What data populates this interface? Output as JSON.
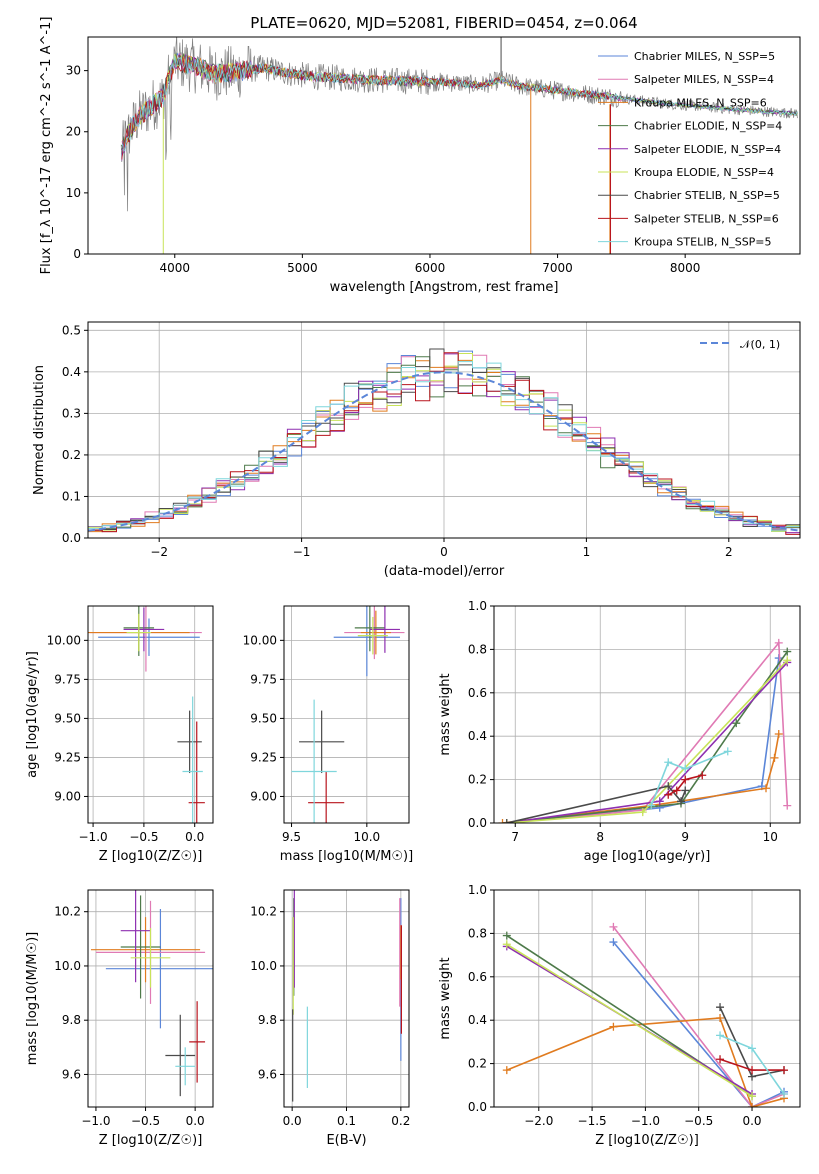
{
  "title": "PLATE=0620, MJD=52081, FIBERID=0454, z=0.064",
  "legend_series": [
    {
      "name": "Chabrier MILES, N_SSP=5",
      "color": "#5b86d8"
    },
    {
      "name": "Salpeter MILES, N_SSP=4",
      "color": "#e07ab4"
    },
    {
      "name": "Kroupa MILES, N_SSP=6",
      "color": "#e07b1f"
    },
    {
      "name": "Chabrier ELODIE, N_SSP=4",
      "color": "#4e7a4a"
    },
    {
      "name": "Salpeter ELODIE, N_SSP=4",
      "color": "#8e2fb0"
    },
    {
      "name": "Kroupa ELODIE, N_SSP=4",
      "color": "#c8e35a"
    },
    {
      "name": "Chabrier STELIB, N_SSP=5",
      "color": "#4a4a4a"
    },
    {
      "name": "Salpeter STELIB, N_SSP=6",
      "color": "#b8141d"
    },
    {
      "name": "Kroupa STELIB, N_SSP=5",
      "color": "#7fd6dc"
    }
  ],
  "chart_data": [
    {
      "id": "spectrum",
      "type": "line",
      "title": "PLATE=0620, MJD=52081, FIBERID=0454, z=0.064",
      "xlabel": "wavelength [Angstrom, rest frame]",
      "ylabel": "Flux [f_λ 10^-17 erg cm^-2 s^-1 A^-1]",
      "xlim": [
        3320,
        8900
      ],
      "ylim": [
        0,
        35.5
      ],
      "xticks": [
        4000,
        5000,
        6000,
        7000,
        8000
      ],
      "yticks": [
        0,
        10,
        20,
        30
      ],
      "data_color": "#808080",
      "spectrum_nodes": {
        "x": [
          3580,
          3620,
          3700,
          3800,
          3900,
          4000,
          4100,
          4200,
          4300,
          4500,
          4700,
          4900,
          5100,
          5300,
          5500,
          5800,
          6000,
          6200,
          6400,
          6560,
          6700,
          6900,
          7100,
          7300,
          7500,
          7700,
          7900,
          8100,
          8300,
          8500,
          8700,
          8880
        ],
        "y": [
          16.5,
          19,
          22,
          24,
          25.5,
          31.5,
          31,
          30.5,
          29.5,
          29.8,
          30.5,
          29.5,
          29,
          28.8,
          28.5,
          28.3,
          28.2,
          28,
          27.6,
          28.5,
          27.5,
          27.0,
          26.5,
          26.0,
          25.5,
          25.0,
          24.5,
          24.2,
          23.8,
          23.5,
          23.2,
          23.0
        ]
      },
      "series": [
        {
          "name": "Chabrier MILES, N_SSP=5"
        },
        {
          "name": "Salpeter MILES, N_SSP=4"
        },
        {
          "name": "Kroupa MILES, N_SSP=6"
        },
        {
          "name": "Chabrier ELODIE, N_SSP=4"
        },
        {
          "name": "Salpeter ELODIE, N_SSP=4"
        },
        {
          "name": "Kroupa ELODIE, N_SSP=4"
        },
        {
          "name": "Chabrier STELIB, N_SSP=5"
        },
        {
          "name": "Salpeter STELIB, N_SSP=6"
        },
        {
          "name": "Kroupa STELIB, N_SSP=5"
        }
      ],
      "grid": false,
      "legend_position": "upper-right"
    },
    {
      "id": "residuals",
      "type": "bar",
      "xlabel": "(data-model)/error",
      "ylabel": "Normed distribution",
      "xlim": [
        -2.5,
        2.5
      ],
      "ylim": [
        0,
        0.52
      ],
      "xticks": [
        -2,
        -1,
        0,
        1,
        2
      ],
      "yticks": [
        0.0,
        0.1,
        0.2,
        0.3,
        0.4,
        0.5
      ],
      "reference_curve": {
        "name": "𝒩(0, 1)",
        "color": "#5b86d8",
        "style": "dashed"
      },
      "bin_width": 0.1,
      "grid": true,
      "legend_position": "upper-right"
    },
    {
      "id": "age-vs-Z",
      "type": "scatter",
      "xlabel": "Z [log10(Z/Z☉)]",
      "ylabel": "age  [log10(age/yr)]",
      "xlim": [
        -1.05,
        0.18
      ],
      "ylim": [
        8.83,
        10.22
      ],
      "xticks": [
        -1.0,
        -0.5,
        0.0
      ],
      "yticks": [
        9.0,
        9.25,
        9.5,
        9.75,
        10.0
      ],
      "points": [
        {
          "series": 0,
          "x": -0.45,
          "y": 10.02,
          "xerr": 0.5,
          "yerr": 0.12
        },
        {
          "series": 1,
          "x": -0.48,
          "y": 10.05,
          "xerr": 0.55,
          "yerr": 0.25
        },
        {
          "series": 2,
          "x": -0.55,
          "y": 10.05,
          "xerr": 0.5,
          "yerr": 0.12
        },
        {
          "series": 3,
          "x": -0.55,
          "y": 10.08,
          "xerr": 0.15,
          "yerr": 0.18
        },
        {
          "series": 4,
          "x": -0.5,
          "y": 10.07,
          "xerr": 0.2,
          "yerr": 0.14
        },
        {
          "series": 5,
          "x": -0.55,
          "y": 10.05,
          "xerr": 0.12,
          "yerr": 0.12
        },
        {
          "series": 6,
          "x": -0.05,
          "y": 9.35,
          "xerr": 0.12,
          "yerr": 0.2
        },
        {
          "series": 7,
          "x": 0.02,
          "y": 8.96,
          "xerr": 0.08,
          "yerr": 0.52
        },
        {
          "series": 8,
          "x": -0.02,
          "y": 9.16,
          "xerr": 0.1,
          "yerr": 0.48
        }
      ]
    },
    {
      "id": "age-vs-mass",
      "type": "scatter",
      "xlabel": "mass [log10(M/M☉)]",
      "ylabel": "",
      "xlim": [
        9.45,
        10.28
      ],
      "ylim": [
        8.83,
        10.22
      ],
      "xticks": [
        9.5,
        10.0
      ],
      "yticks": [
        9.0,
        9.25,
        9.5,
        9.75,
        10.0
      ],
      "points": [
        {
          "series": 0,
          "x": 10.0,
          "y": 10.02,
          "xerr": 0.22,
          "yerr": 0.25
        },
        {
          "series": 1,
          "x": 10.05,
          "y": 10.05,
          "xerr": 0.2,
          "yerr": 0.17
        },
        {
          "series": 2,
          "x": 10.06,
          "y": 10.05,
          "xerr": 0.1,
          "yerr": 0.14
        },
        {
          "series": 3,
          "x": 10.02,
          "y": 10.08,
          "xerr": 0.1,
          "yerr": 0.15
        },
        {
          "series": 4,
          "x": 10.12,
          "y": 10.07,
          "xerr": 0.1,
          "yerr": 0.15
        },
        {
          "series": 5,
          "x": 10.04,
          "y": 10.03,
          "xerr": 0.1,
          "yerr": 0.12
        },
        {
          "series": 6,
          "x": 9.7,
          "y": 9.35,
          "xerr": 0.15,
          "yerr": 0.2
        },
        {
          "series": 7,
          "x": 9.73,
          "y": 8.96,
          "xerr": 0.12,
          "yerr": 0.2
        },
        {
          "series": 8,
          "x": 9.65,
          "y": 9.16,
          "xerr": 0.15,
          "yerr": 0.46
        }
      ]
    },
    {
      "id": "weight-vs-age",
      "type": "line",
      "xlabel": "age  [log10(age/yr)]",
      "ylabel": "mass weight",
      "xlim": [
        6.75,
        10.35
      ],
      "ylim": [
        0.0,
        1.0
      ],
      "xticks": [
        7,
        8,
        9,
        10
      ],
      "yticks": [
        0.0,
        0.2,
        0.4,
        0.6,
        0.8,
        1.0
      ],
      "grid": true,
      "series": [
        {
          "x": [
            6.9,
            8.7,
            9.9,
            10.1
          ],
          "y": [
            0.0,
            0.07,
            0.17,
            0.76
          ]
        },
        {
          "x": [
            6.9,
            8.5,
            10.1,
            10.2
          ],
          "y": [
            0.0,
            0.06,
            0.83,
            0.08
          ]
        },
        {
          "x": [
            6.85,
            8.6,
            9.95,
            10.05,
            10.1
          ],
          "y": [
            0.0,
            0.08,
            0.16,
            0.3,
            0.41
          ]
        },
        {
          "x": [
            6.9,
            8.95,
            9.6,
            10.2
          ],
          "y": [
            0.0,
            0.09,
            0.46,
            0.79
          ]
        },
        {
          "x": [
            6.9,
            8.7,
            10.2
          ],
          "y": [
            0.0,
            0.1,
            0.74
          ]
        },
        {
          "x": [
            6.9,
            8.5,
            10.2
          ],
          "y": [
            0.0,
            0.05,
            0.75
          ]
        },
        {
          "x": [
            6.9,
            8.8,
            8.95,
            9.0
          ],
          "y": [
            0.0,
            0.17,
            0.1,
            0.15
          ]
        },
        {
          "x": [
            8.8,
            8.9,
            9.0,
            9.2
          ],
          "y": [
            0.13,
            0.15,
            0.2,
            0.22
          ]
        },
        {
          "x": [
            8.6,
            8.8,
            9.0,
            9.5
          ],
          "y": [
            0.08,
            0.28,
            0.25,
            0.33
          ]
        }
      ]
    },
    {
      "id": "mass-vs-Z",
      "type": "scatter",
      "xlabel": "Z [log10(Z/Z☉)]",
      "ylabel": "mass [log10(M/M☉)]",
      "xlim": [
        -1.08,
        0.18
      ],
      "ylim": [
        9.48,
        10.28
      ],
      "xticks": [
        -1.0,
        -0.5,
        0.0
      ],
      "yticks": [
        9.6,
        9.8,
        10.0,
        10.2
      ],
      "points": [
        {
          "series": 0,
          "x": -0.35,
          "y": 9.99,
          "xerr": 0.55,
          "yerr": 0.22
        },
        {
          "series": 1,
          "x": -0.45,
          "y": 10.05,
          "xerr": 0.55,
          "yerr": 0.19
        },
        {
          "series": 2,
          "x": -0.5,
          "y": 10.06,
          "xerr": 0.55,
          "yerr": 0.12
        },
        {
          "series": 3,
          "x": -0.55,
          "y": 10.07,
          "xerr": 0.2,
          "yerr": 0.19
        },
        {
          "series": 4,
          "x": -0.6,
          "y": 10.13,
          "xerr": 0.15,
          "yerr": 0.19
        },
        {
          "series": 5,
          "x": -0.45,
          "y": 10.03,
          "xerr": 0.2,
          "yerr": 0.11
        },
        {
          "series": 6,
          "x": -0.15,
          "y": 9.67,
          "xerr": 0.15,
          "yerr": 0.15
        },
        {
          "series": 7,
          "x": 0.02,
          "y": 9.72,
          "xerr": 0.08,
          "yerr": 0.15
        },
        {
          "series": 8,
          "x": -0.1,
          "y": 9.63,
          "xerr": 0.1,
          "yerr": 0.07
        }
      ]
    },
    {
      "id": "mass-vs-EBV",
      "type": "scatter",
      "xlabel": "E(B-V)",
      "ylabel": "",
      "xlim": [
        -0.015,
        0.215
      ],
      "ylim": [
        9.48,
        10.28
      ],
      "xticks": [
        0.0,
        0.1,
        0.2
      ],
      "yticks": [
        9.6,
        9.8,
        10.0,
        10.2
      ],
      "points": [
        {
          "series": 0,
          "x": 0.2,
          "y": 9.95,
          "xerr": 0.0,
          "yerr": 0.3
        },
        {
          "series": 1,
          "x": 0.198,
          "y": 10.05,
          "xerr": 0.0,
          "yerr": 0.2
        },
        {
          "series": 2,
          "x": 0.2,
          "y": 10.05,
          "xerr": 0.0,
          "yerr": 0.1
        },
        {
          "series": 3,
          "x": 0.003,
          "y": 10.07,
          "xerr": 0.0,
          "yerr": 0.18
        },
        {
          "series": 4,
          "x": 0.004,
          "y": 10.1,
          "xerr": 0.0,
          "yerr": 0.18
        },
        {
          "series": 5,
          "x": 0.002,
          "y": 10.0,
          "xerr": 0.0,
          "yerr": 0.18
        },
        {
          "series": 6,
          "x": 0.001,
          "y": 9.67,
          "xerr": 0.0,
          "yerr": 0.17
        },
        {
          "series": 7,
          "x": 0.201,
          "y": 9.95,
          "xerr": 0.0,
          "yerr": 0.2
        },
        {
          "series": 8,
          "x": 0.028,
          "y": 9.7,
          "xerr": 0.0,
          "yerr": 0.15
        }
      ]
    },
    {
      "id": "weight-vs-Z",
      "type": "line",
      "xlabel": "Z [log10(Z/Z☉)]",
      "ylabel": "mass weight",
      "xlim": [
        -2.42,
        0.45
      ],
      "ylim": [
        0.0,
        1.0
      ],
      "xticks": [
        -2.0,
        -1.5,
        -1.0,
        -0.5,
        0.0
      ],
      "yticks": [
        0.0,
        0.2,
        0.4,
        0.6,
        0.8,
        1.0
      ],
      "grid": true,
      "series": [
        {
          "x": [
            -1.3,
            0.0,
            0.3
          ],
          "y": [
            0.76,
            0.0,
            0.07
          ]
        },
        {
          "x": [
            -1.3,
            0.0,
            0.3
          ],
          "y": [
            0.83,
            0.0,
            0.06
          ]
        },
        {
          "x": [
            -2.3,
            -1.3,
            -0.3,
            0.0,
            0.3
          ],
          "y": [
            0.17,
            0.37,
            0.41,
            0.0,
            0.04
          ]
        },
        {
          "x": [
            -2.3,
            0.0
          ],
          "y": [
            0.79,
            0.05
          ]
        },
        {
          "x": [
            -2.3,
            0.0
          ],
          "y": [
            0.74,
            0.06
          ]
        },
        {
          "x": [
            -2.3,
            0.0
          ],
          "y": [
            0.75,
            0.05
          ]
        },
        {
          "x": [
            -0.3,
            0.0,
            0.3
          ],
          "y": [
            0.46,
            0.14,
            0.17
          ]
        },
        {
          "x": [
            -0.3,
            0.0,
            0.3
          ],
          "y": [
            0.22,
            0.17,
            0.17
          ]
        },
        {
          "x": [
            -0.3,
            0.0,
            0.3
          ],
          "y": [
            0.33,
            0.27,
            0.06
          ]
        }
      ]
    }
  ]
}
